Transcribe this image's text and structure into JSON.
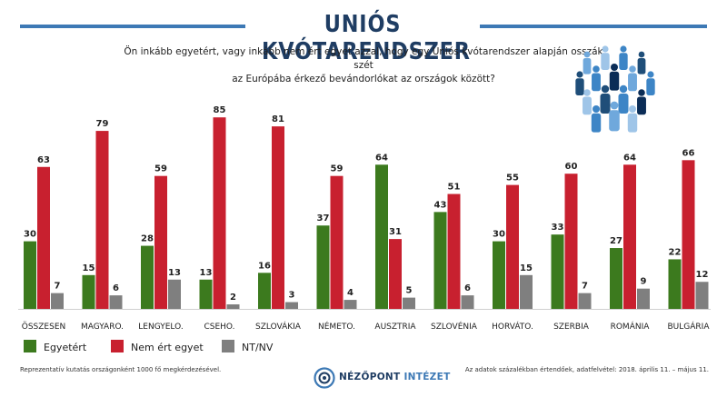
{
  "header": {
    "title": "UNIÓS KVÓTARENDSZER",
    "question_line1": "Ön inkább egyetért, vagy inkább nem ért egyet azzal, hogy egy Uniós kvótarendszer alapján osszák szét",
    "question_line2": "az Európába érkező bevándorlókat az országok között?",
    "illustration": "crowd-of-people-icon"
  },
  "chart_data": {
    "type": "bar",
    "title": "UNIÓS KVÓTARENDSZER",
    "categories": [
      "ÖSSZESEN",
      "MAGYARO.",
      "LENGYELO.",
      "CSEHO.",
      "SZLOVÁKIA",
      "NÉMETO.",
      "AUSZTRIA",
      "SZLOVÉNIA",
      "HORVÁTO.",
      "SZERBIA",
      "ROMÁNIA",
      "BULGÁRIA"
    ],
    "series": [
      {
        "name": "Egyetért",
        "color": "#3c7a1e",
        "values": [
          30,
          15,
          28,
          13,
          16,
          37,
          64,
          43,
          30,
          33,
          27,
          22
        ]
      },
      {
        "name": "Nem ért egyet",
        "color": "#c8202f",
        "values": [
          63,
          79,
          59,
          85,
          81,
          59,
          31,
          51,
          55,
          60,
          64,
          66
        ]
      },
      {
        "name": "NT/NV",
        "color": "#7f7f7f",
        "values": [
          7,
          6,
          13,
          2,
          3,
          4,
          5,
          6,
          15,
          7,
          9,
          12
        ]
      }
    ],
    "ylim": [
      0,
      100
    ],
    "grid": false,
    "legend": "bottom-left",
    "data_labels": true
  },
  "legend": {
    "items": [
      {
        "label": "Egyetért",
        "color": "#3c7a1e"
      },
      {
        "label": "Nem ért egyet",
        "color": "#c8202f"
      },
      {
        "label": "NT/NV",
        "color": "#7f7f7f"
      }
    ]
  },
  "footer": {
    "left_note": "Reprezentatív kutatás országonként 1000 fő megkérdezésével.",
    "right_note": "Az adatok százalékban értendőek, adatfelvétel: 2018. április 11. – május 11.",
    "brand_part1": "NÉZŐPONT",
    "brand_part2": "INTÉZET",
    "brand_icon": "nezopont-logo-icon"
  }
}
